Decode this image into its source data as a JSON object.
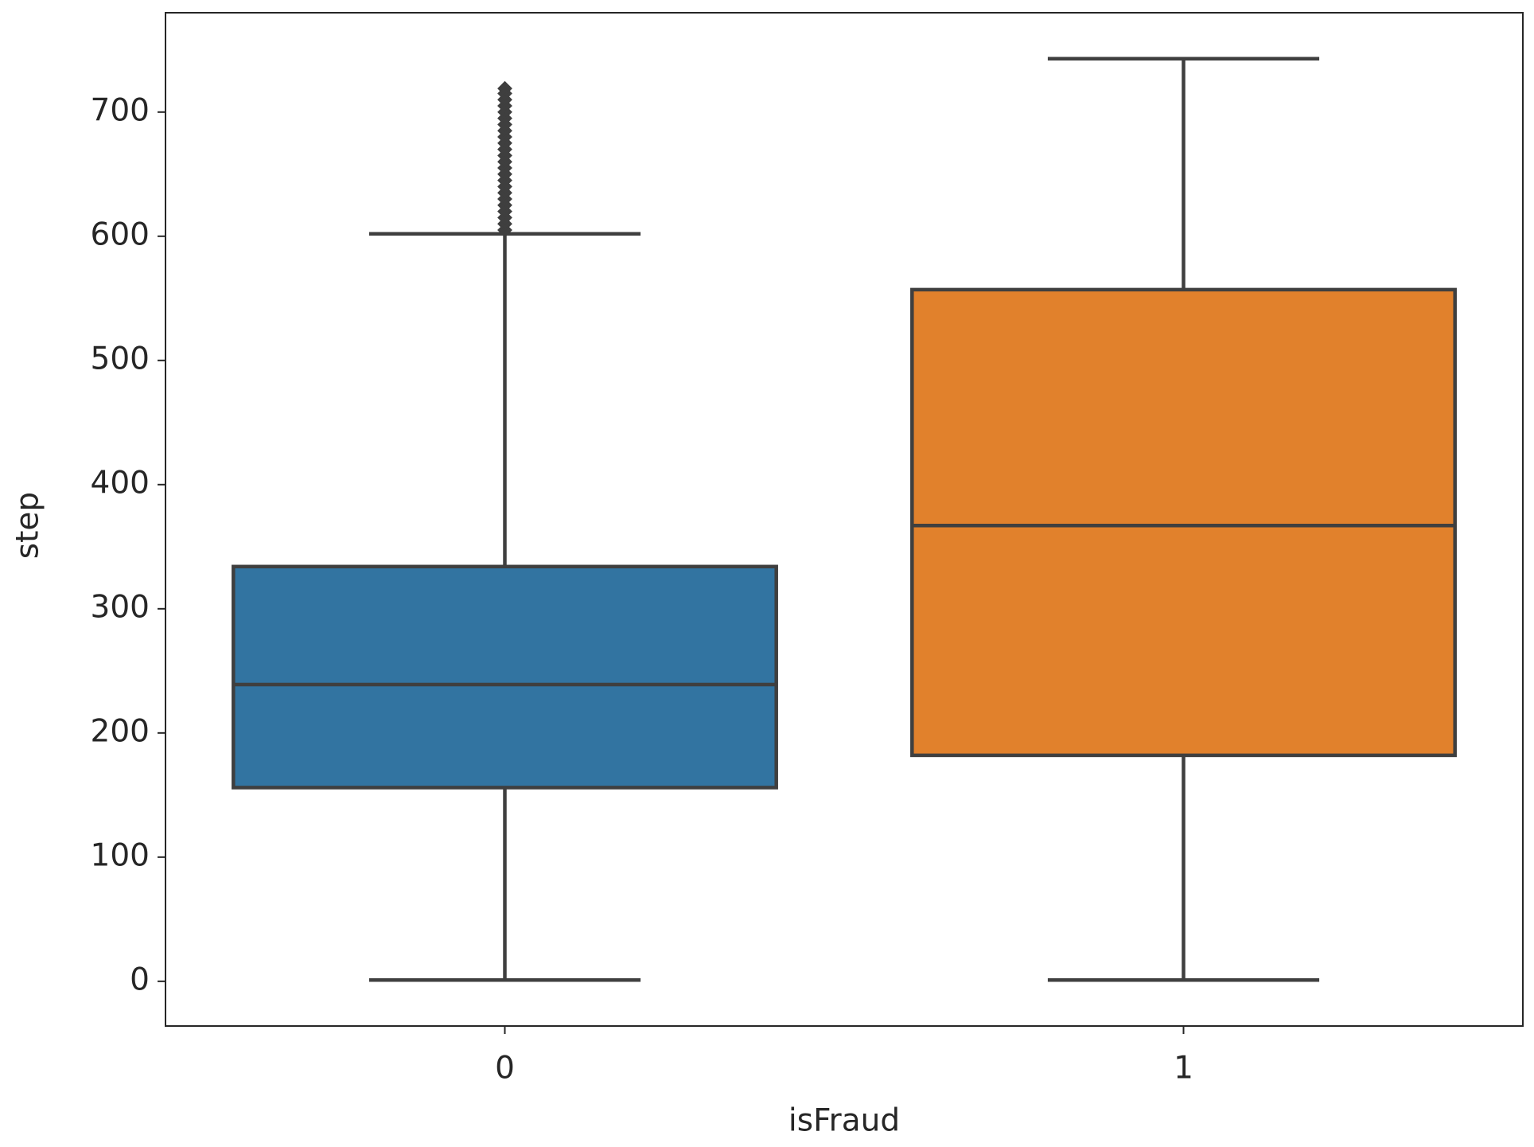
{
  "chart_data": {
    "type": "box",
    "x_label": "isFraud",
    "y_label": "step",
    "categories": [
      "0",
      "1"
    ],
    "boxes": [
      {
        "color": "#3274a1",
        "min": 1,
        "q1": 156,
        "median": 239,
        "q3": 334,
        "max": 602,
        "outliers": [
          605,
          610,
          615,
          620,
          625,
          630,
          635,
          640,
          645,
          650,
          655,
          660,
          665,
          670,
          675,
          680,
          685,
          690,
          695,
          700,
          705,
          710,
          715,
          719
        ]
      },
      {
        "color": "#e1812c",
        "min": 1,
        "q1": 182,
        "median": 367,
        "q3": 557,
        "max": 743,
        "outliers": []
      }
    ],
    "line_color": "#3f3f3f",
    "ylim": [
      -36,
      780
    ],
    "yticks": [
      0,
      100,
      200,
      300,
      400,
      500,
      600,
      700
    ]
  }
}
